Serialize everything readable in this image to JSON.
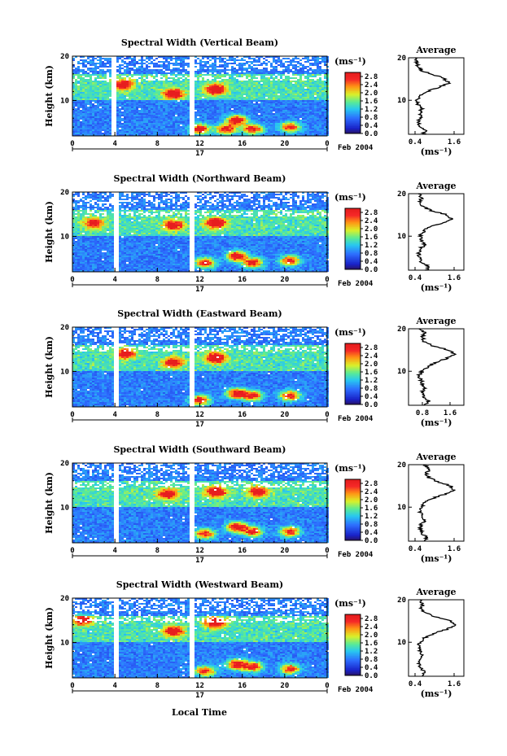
{
  "figure": {
    "date_label": "Feb 2004",
    "day_label": "17",
    "xlabel": "Local Time",
    "ylabel": "Height (km)",
    "unit_label": "(ms⁻¹)",
    "profile_title": "Average",
    "profile_xlabel": "(ms⁻¹)"
  },
  "chart_data": [
    {
      "type": "heatmap",
      "title": "Spectral Width (Vertical Beam)",
      "xlabel": "Local Time",
      "ylabel": "Height (km)",
      "x_ticks": [
        "0",
        "4",
        "8",
        "12",
        "16",
        "20",
        "0"
      ],
      "xlim": [
        0,
        24
      ],
      "y_ticks": [
        "10",
        "20"
      ],
      "ylim": [
        2,
        20
      ],
      "colorbar": {
        "ticks": [
          "0.0",
          "0.4",
          "0.8",
          "1.2",
          "1.6",
          "2.0",
          "2.4",
          "2.8"
        ],
        "range": [
          0,
          3.0
        ]
      },
      "gaps_hours": [
        4.0,
        11.2
      ],
      "hotspots": [
        {
          "t": 12.0,
          "h": 3.5,
          "w": 3.0
        },
        {
          "t": 13.5,
          "h": 12.5,
          "w": 2.9
        },
        {
          "t": 15.5,
          "h": 5.5,
          "w": 3.0
        },
        {
          "t": 14.5,
          "h": 3.5,
          "w": 2.8
        },
        {
          "t": 17.0,
          "h": 3.5,
          "w": 2.7
        },
        {
          "t": 20.5,
          "h": 4.0,
          "w": 2.6
        },
        {
          "t": 9.5,
          "h": 11.5,
          "w": 2.5
        },
        {
          "t": 4.8,
          "h": 13.5,
          "w": 2.4
        }
      ],
      "profile": {
        "xticks": [
          "0.4",
          "1.6"
        ],
        "xlim": [
          0.2,
          1.9
        ],
        "yticks": [
          "10",
          "20"
        ],
        "ylim": [
          2,
          20
        ],
        "points": [
          [
            0.65,
            2
          ],
          [
            0.72,
            3
          ],
          [
            0.55,
            4
          ],
          [
            0.5,
            5
          ],
          [
            0.6,
            6
          ],
          [
            0.55,
            7
          ],
          [
            0.6,
            8
          ],
          [
            0.5,
            9
          ],
          [
            0.45,
            10
          ],
          [
            0.55,
            11
          ],
          [
            0.75,
            12
          ],
          [
            1.1,
            13
          ],
          [
            1.45,
            14
          ],
          [
            1.3,
            15
          ],
          [
            1.0,
            16
          ],
          [
            0.6,
            17
          ],
          [
            0.5,
            18
          ],
          [
            0.45,
            19
          ],
          [
            0.4,
            20
          ]
        ]
      }
    },
    {
      "type": "heatmap",
      "title": "Spectral Width (Northward Beam)",
      "xlabel": "Local Time",
      "ylabel": "Height (km)",
      "x_ticks": [
        "0",
        "4",
        "8",
        "12",
        "16",
        "20",
        "0"
      ],
      "xlim": [
        0,
        24
      ],
      "y_ticks": [
        "10",
        "20"
      ],
      "ylim": [
        2,
        20
      ],
      "colorbar": {
        "ticks": [
          "0.0",
          "0.4",
          "0.8",
          "1.2",
          "1.6",
          "2.0",
          "2.4",
          "2.8"
        ],
        "range": [
          0,
          3.0
        ]
      },
      "gaps_hours": [
        4.1,
        11.2
      ],
      "hotspots": [
        {
          "t": 13.5,
          "h": 13.0,
          "w": 2.9
        },
        {
          "t": 15.5,
          "h": 5.5,
          "w": 3.0
        },
        {
          "t": 12.5,
          "h": 4.0,
          "w": 2.7
        },
        {
          "t": 17.0,
          "h": 4.0,
          "w": 2.7
        },
        {
          "t": 20.5,
          "h": 4.5,
          "w": 2.6
        },
        {
          "t": 9.5,
          "h": 12.5,
          "w": 2.5
        },
        {
          "t": 2.0,
          "h": 13.0,
          "w": 2.2
        }
      ],
      "profile": {
        "xticks": [
          "0.4",
          "1.6"
        ],
        "xlim": [
          0.2,
          1.9
        ],
        "yticks": [
          "10",
          "20"
        ],
        "ylim": [
          2,
          20
        ],
        "points": [
          [
            0.75,
            2
          ],
          [
            0.8,
            3
          ],
          [
            0.6,
            4
          ],
          [
            0.55,
            5
          ],
          [
            0.5,
            6
          ],
          [
            0.55,
            7
          ],
          [
            0.7,
            8
          ],
          [
            0.6,
            9
          ],
          [
            0.55,
            10
          ],
          [
            0.65,
            11
          ],
          [
            0.8,
            12
          ],
          [
            1.2,
            13
          ],
          [
            1.55,
            14
          ],
          [
            1.4,
            15
          ],
          [
            0.9,
            16
          ],
          [
            0.65,
            17
          ],
          [
            0.55,
            18
          ],
          [
            0.6,
            19
          ],
          [
            0.5,
            20
          ]
        ]
      }
    },
    {
      "type": "heatmap",
      "title": "Spectral Width (Eastward Beam)",
      "xlabel": "Local Time",
      "ylabel": "Height (km)",
      "x_ticks": [
        "0",
        "4",
        "8",
        "12",
        "16",
        "20",
        "0"
      ],
      "xlim": [
        0,
        24
      ],
      "y_ticks": [
        "10",
        "20"
      ],
      "ylim": [
        2,
        20
      ],
      "colorbar": {
        "ticks": [
          "0.0",
          "0.4",
          "0.8",
          "1.2",
          "1.6",
          "2.0",
          "2.4",
          "2.8"
        ],
        "range": [
          0,
          3.0
        ]
      },
      "gaps_hours": [
        4.1,
        11.2
      ],
      "hotspots": [
        {
          "t": 13.5,
          "h": 13.0,
          "w": 2.9
        },
        {
          "t": 15.5,
          "h": 5.0,
          "w": 3.0
        },
        {
          "t": 12.0,
          "h": 3.5,
          "w": 2.6
        },
        {
          "t": 17.0,
          "h": 4.5,
          "w": 2.5
        },
        {
          "t": 20.5,
          "h": 4.5,
          "w": 2.6
        },
        {
          "t": 9.5,
          "h": 12.0,
          "w": 2.4
        },
        {
          "t": 5.0,
          "h": 14.0,
          "w": 2.3
        }
      ],
      "profile": {
        "xticks": [
          "0.8",
          "1.6"
        ],
        "xlim": [
          0.4,
          2.0
        ],
        "yticks": [
          "10",
          "20"
        ],
        "ylim": [
          2,
          20
        ],
        "points": [
          [
            0.9,
            2
          ],
          [
            1.0,
            3
          ],
          [
            0.85,
            4
          ],
          [
            0.8,
            5
          ],
          [
            0.85,
            6
          ],
          [
            0.8,
            7
          ],
          [
            0.75,
            8
          ],
          [
            0.7,
            9
          ],
          [
            0.8,
            10
          ],
          [
            0.95,
            11
          ],
          [
            1.15,
            12
          ],
          [
            1.5,
            13
          ],
          [
            1.75,
            14
          ],
          [
            1.55,
            15
          ],
          [
            1.1,
            16
          ],
          [
            0.85,
            17
          ],
          [
            0.8,
            18
          ],
          [
            0.9,
            19
          ],
          [
            0.7,
            20
          ]
        ]
      }
    },
    {
      "type": "heatmap",
      "title": "Spectral Width (Southward Beam)",
      "xlabel": "Local Time",
      "ylabel": "Height (km)",
      "x_ticks": [
        "0",
        "4",
        "8",
        "12",
        "16",
        "20",
        "0"
      ],
      "xlim": [
        0,
        24
      ],
      "y_ticks": [
        "10",
        "20"
      ],
      "ylim": [
        2,
        20
      ],
      "colorbar": {
        "ticks": [
          "0.0",
          "0.4",
          "0.8",
          "1.2",
          "1.6",
          "2.0",
          "2.4",
          "2.8"
        ],
        "range": [
          0,
          3.0
        ]
      },
      "gaps_hours": [
        4.1,
        11.2
      ],
      "hotspots": [
        {
          "t": 13.5,
          "h": 13.5,
          "w": 2.9
        },
        {
          "t": 15.5,
          "h": 5.5,
          "w": 3.0
        },
        {
          "t": 12.5,
          "h": 4.0,
          "w": 2.6
        },
        {
          "t": 17.0,
          "h": 4.5,
          "w": 2.5
        },
        {
          "t": 20.5,
          "h": 4.5,
          "w": 2.6
        },
        {
          "t": 9.0,
          "h": 13.0,
          "w": 2.5
        },
        {
          "t": 17.5,
          "h": 13.5,
          "w": 2.4
        }
      ],
      "profile": {
        "xticks": [
          "0.4",
          "1.6"
        ],
        "xlim": [
          0.2,
          1.9
        ],
        "yticks": [
          "10",
          "20"
        ],
        "ylim": [
          2,
          20
        ],
        "points": [
          [
            0.7,
            2
          ],
          [
            0.75,
            3
          ],
          [
            0.6,
            4
          ],
          [
            0.55,
            5
          ],
          [
            0.6,
            6
          ],
          [
            0.7,
            7
          ],
          [
            0.6,
            8
          ],
          [
            0.55,
            9
          ],
          [
            0.6,
            10
          ],
          [
            0.7,
            11
          ],
          [
            0.9,
            12
          ],
          [
            1.3,
            13
          ],
          [
            1.6,
            14
          ],
          [
            1.5,
            15
          ],
          [
            1.1,
            16
          ],
          [
            0.8,
            17
          ],
          [
            0.75,
            18
          ],
          [
            0.85,
            19
          ],
          [
            0.7,
            20
          ]
        ]
      }
    },
    {
      "type": "heatmap",
      "title": "Spectral Width (Westward Beam)",
      "xlabel": "Local Time",
      "ylabel": "Height (km)",
      "x_ticks": [
        "0",
        "4",
        "8",
        "12",
        "16",
        "20",
        "0"
      ],
      "xlim": [
        0,
        24
      ],
      "y_ticks": [
        "10",
        "20"
      ],
      "ylim": [
        2,
        20
      ],
      "colorbar": {
        "ticks": [
          "0.0",
          "0.4",
          "0.8",
          "1.2",
          "1.6",
          "2.0",
          "2.4",
          "2.8"
        ],
        "range": [
          0,
          3.0
        ]
      },
      "gaps_hours": [
        4.1,
        11.2
      ],
      "hotspots": [
        {
          "t": 13.5,
          "h": 14.5,
          "w": 2.9
        },
        {
          "t": 15.5,
          "h": 5.0,
          "w": 3.0
        },
        {
          "t": 12.5,
          "h": 3.5,
          "w": 2.6
        },
        {
          "t": 17.0,
          "h": 4.5,
          "w": 2.5
        },
        {
          "t": 20.5,
          "h": 4.0,
          "w": 2.5
        },
        {
          "t": 9.5,
          "h": 12.5,
          "w": 2.5
        },
        {
          "t": 1.0,
          "h": 15.0,
          "w": 2.4
        }
      ],
      "profile": {
        "xticks": [
          "0.4",
          "1.6"
        ],
        "xlim": [
          0.2,
          1.9
        ],
        "yticks": [
          "10",
          "20"
        ],
        "ylim": [
          2,
          20
        ],
        "points": [
          [
            0.65,
            2
          ],
          [
            0.7,
            3
          ],
          [
            0.55,
            4
          ],
          [
            0.5,
            5
          ],
          [
            0.55,
            6
          ],
          [
            0.6,
            7
          ],
          [
            0.55,
            8
          ],
          [
            0.5,
            9
          ],
          [
            0.55,
            10
          ],
          [
            0.7,
            11
          ],
          [
            0.95,
            12
          ],
          [
            1.35,
            13
          ],
          [
            1.65,
            14
          ],
          [
            1.5,
            15
          ],
          [
            1.0,
            16
          ],
          [
            0.7,
            17
          ],
          [
            0.6,
            18
          ],
          [
            0.65,
            19
          ],
          [
            0.55,
            20
          ]
        ]
      }
    }
  ]
}
